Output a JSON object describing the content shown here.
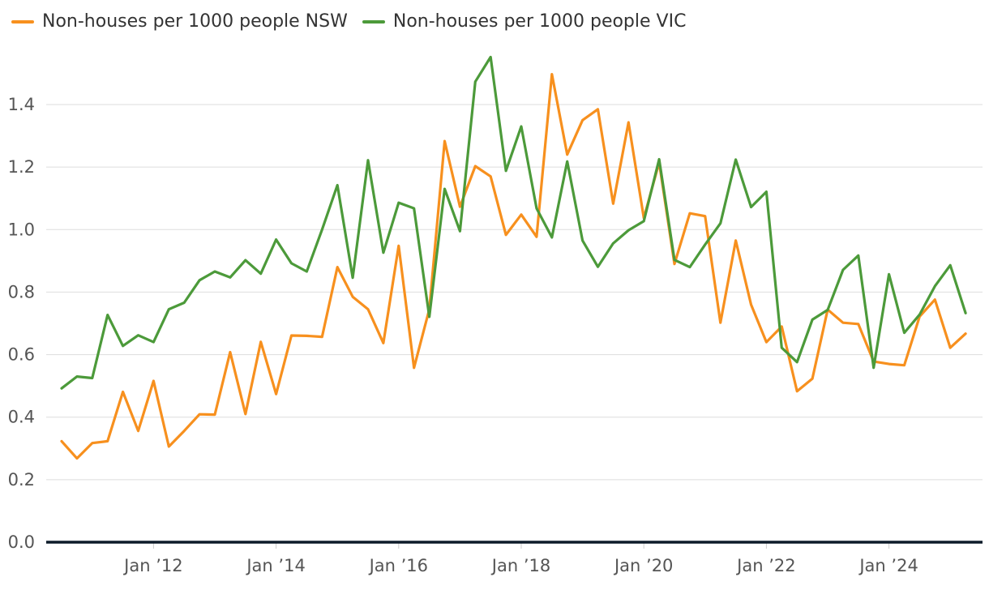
{
  "chart_data": {
    "type": "line",
    "title": "",
    "xlabel": "",
    "ylabel": "",
    "ylim": [
      0,
      1.6
    ],
    "yticks": [
      "0.0",
      "0.2",
      "0.4",
      "0.6",
      "0.8",
      "1.0",
      "1.2",
      "1.4"
    ],
    "xtick_labels": [
      "Jan ’12",
      "Jan ’14",
      "Jan ’16",
      "Jan ’18",
      "Jan ’20",
      "Jan ’22",
      "Jan ’24"
    ],
    "xtick_index": [
      6,
      14,
      22,
      30,
      38,
      46,
      54
    ],
    "x_start": "Jul 2010",
    "x_step": "quarter",
    "grid": true,
    "legend_position": "top-left",
    "series": [
      {
        "name": "Non-houses per 1000 people NSW",
        "color": "#F7901E",
        "values": [
          0.323,
          0.268,
          0.317,
          0.323,
          0.481,
          0.356,
          0.516,
          0.306,
          0.356,
          0.409,
          0.408,
          0.608,
          0.41,
          0.641,
          0.474,
          0.661,
          0.66,
          0.657,
          0.88,
          0.785,
          0.745,
          0.637,
          0.948,
          0.558,
          0.745,
          1.283,
          1.073,
          1.203,
          1.17,
          0.983,
          1.048,
          0.977,
          1.497,
          1.24,
          1.35,
          1.385,
          1.083,
          1.343,
          1.037,
          1.215,
          0.89,
          1.052,
          1.043,
          0.702,
          0.965,
          0.76,
          0.64,
          0.69,
          0.483,
          0.523,
          0.744,
          0.702,
          0.698,
          0.578,
          0.57,
          0.566,
          0.722,
          0.776,
          0.622,
          0.667
        ]
      },
      {
        "name": "Non-houses per 1000 people VIC",
        "color": "#4C9A3A",
        "values": [
          0.492,
          0.53,
          0.525,
          0.727,
          0.628,
          0.662,
          0.64,
          0.745,
          0.766,
          0.838,
          0.866,
          0.847,
          0.902,
          0.859,
          0.968,
          0.892,
          0.866,
          1.0,
          1.142,
          0.846,
          1.222,
          0.926,
          1.086,
          1.068,
          0.721,
          1.13,
          0.995,
          1.473,
          1.552,
          1.188,
          1.33,
          1.068,
          0.975,
          1.218,
          0.965,
          0.881,
          0.956,
          0.998,
          1.027,
          1.225,
          0.903,
          0.88,
          0.952,
          1.02,
          1.224,
          1.072,
          1.121,
          0.622,
          0.576,
          0.712,
          0.743,
          0.871,
          0.917,
          0.558,
          0.857,
          0.67,
          0.728,
          0.819,
          0.886,
          0.733
        ]
      }
    ]
  }
}
